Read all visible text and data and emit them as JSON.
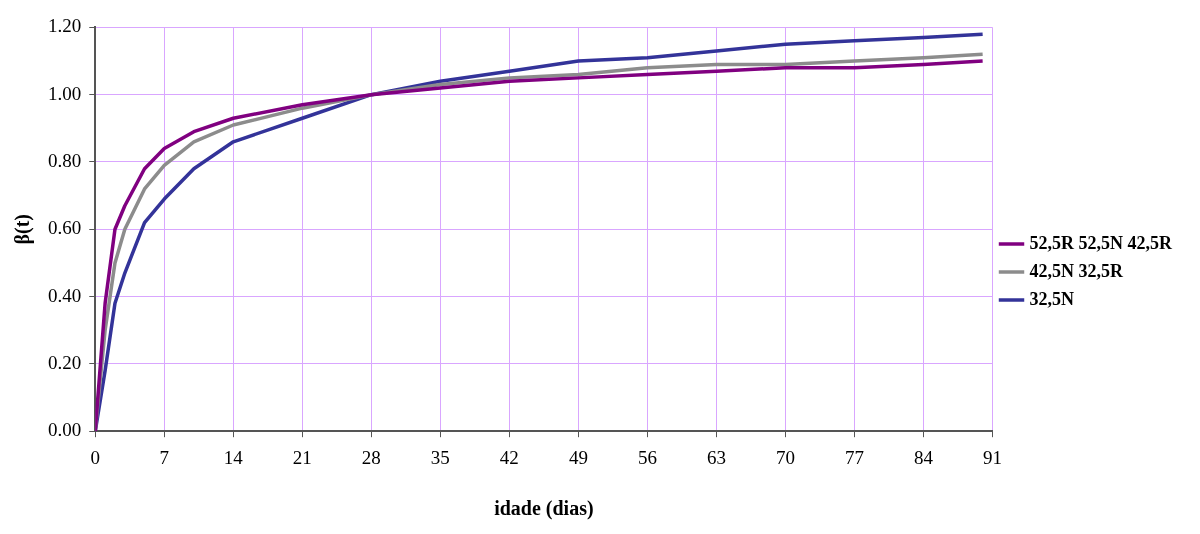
{
  "chart_data": {
    "type": "line",
    "xlabel": "idade (dias)",
    "ylabel": "β(t)",
    "xlim": [
      0,
      91
    ],
    "xticks": [
      0,
      7,
      14,
      21,
      28,
      35,
      42,
      49,
      56,
      63,
      70,
      77,
      84,
      91
    ],
    "ylim": [
      0,
      1.2
    ],
    "yticks": [
      {
        "value": 0,
        "label": "0.00"
      },
      {
        "value": 0.2,
        "label": "0.20"
      },
      {
        "value": 0.4,
        "label": "0.40"
      },
      {
        "value": 0.6,
        "label": "0.60"
      },
      {
        "value": 0.8,
        "label": "0.80"
      },
      {
        "value": 1,
        "label": "1.00"
      },
      {
        "value": 1.2,
        "label": "1.20"
      }
    ],
    "grid": true,
    "legend": "right",
    "marker": "none",
    "line_style": "solid",
    "x": [
      0,
      1,
      2,
      3,
      5,
      7,
      10,
      14,
      21,
      28,
      35,
      42,
      49,
      56,
      63,
      70,
      77,
      84,
      90
    ],
    "series": [
      {
        "name": "52,5R 52,5N 42,5R",
        "color": "#800080",
        "values": [
          0,
          0.38,
          0.6,
          0.67,
          0.78,
          0.84,
          0.89,
          0.93,
          0.97,
          1,
          1.02,
          1.04,
          1.05,
          1.06,
          1.07,
          1.08,
          1.08,
          1.09,
          1.1
        ]
      },
      {
        "name": "42,5N 32,5R",
        "color": "#8c8c8c",
        "values": [
          0,
          0.3,
          0.5,
          0.6,
          0.72,
          0.79,
          0.86,
          0.91,
          0.96,
          1,
          1.03,
          1.05,
          1.06,
          1.08,
          1.09,
          1.09,
          1.1,
          1.11,
          1.12
        ]
      },
      {
        "name": "32,5N",
        "color": "#333399",
        "values": [
          0,
          0.18,
          0.38,
          0.47,
          0.62,
          0.69,
          0.78,
          0.86,
          0.93,
          1,
          1.04,
          1.07,
          1.1,
          1.11,
          1.13,
          1.15,
          1.16,
          1.17,
          1.18
        ]
      }
    ]
  }
}
